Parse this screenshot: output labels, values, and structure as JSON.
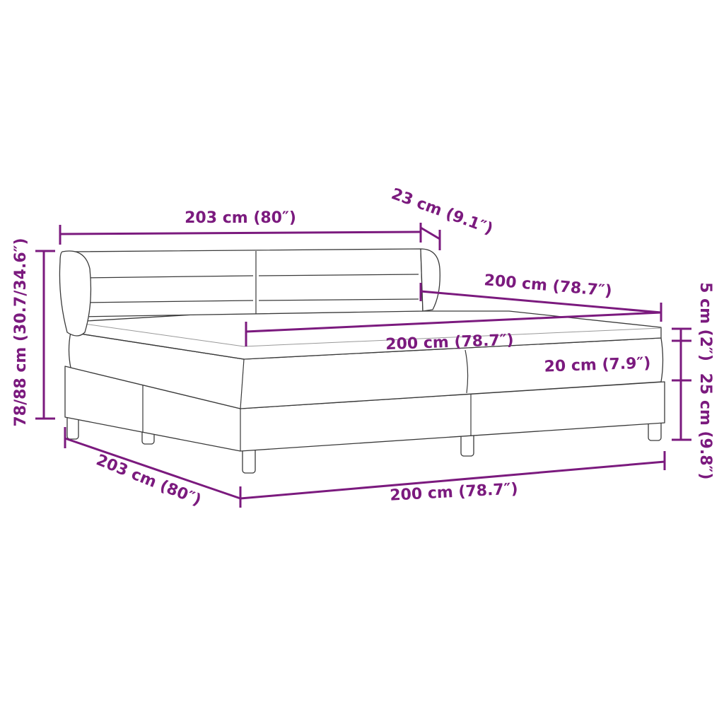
{
  "accent_color": "#7b1a7e",
  "dimensions": {
    "headboard_width": "203 cm (80″)",
    "headboard_depth": "23 cm (9.1″)",
    "height": "78/88 cm (30.7/34.6″)",
    "topper_length": "200 cm (78.7″)",
    "topper_width": "200 cm (78.7″)",
    "mattress_height": "20 cm (7.9″)",
    "topper_height": "5 cm (2″)",
    "base_height": "25 cm (9.8″)",
    "bed_length": "203 cm (80″)",
    "bed_width": "200 cm (78.7″)"
  }
}
